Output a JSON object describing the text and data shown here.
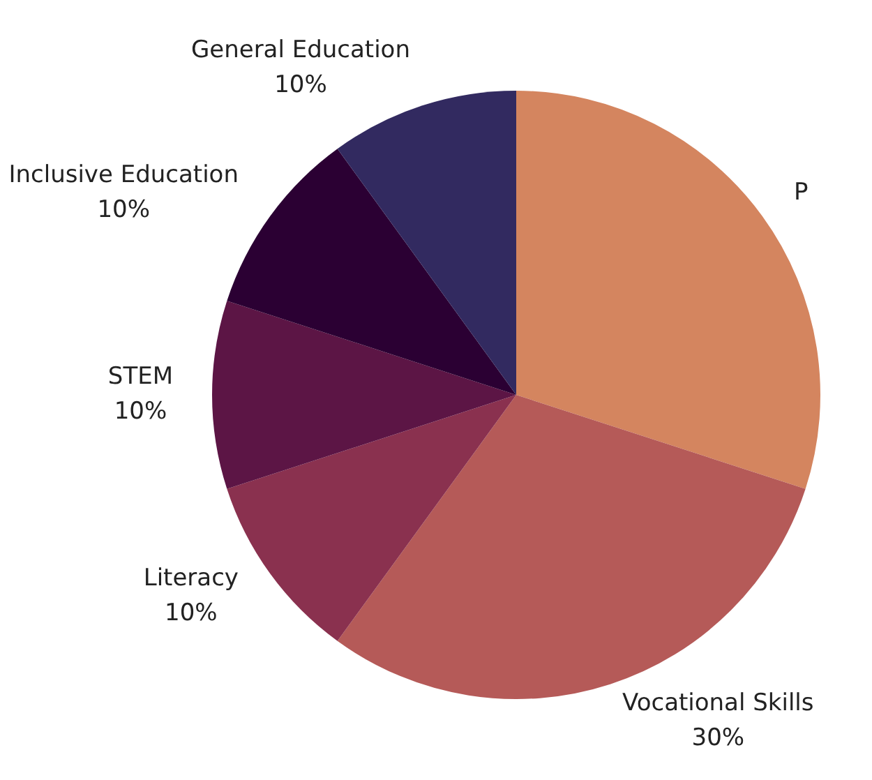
{
  "chart_data": {
    "type": "pie",
    "categories": [
      "P",
      "Vocational Skills",
      "Literacy",
      "STEM",
      "Inclusive Education",
      "General Education"
    ],
    "values": [
      30,
      30,
      10,
      10,
      10,
      10
    ],
    "value_labels": [
      null,
      "30%",
      "10%",
      "10%",
      "10%",
      "10%"
    ],
    "colors": [
      "#d4855f",
      "#b55a58",
      "#8a314f",
      "#5c1545",
      "#2b0033",
      "#322a60"
    ],
    "legend": false
  }
}
